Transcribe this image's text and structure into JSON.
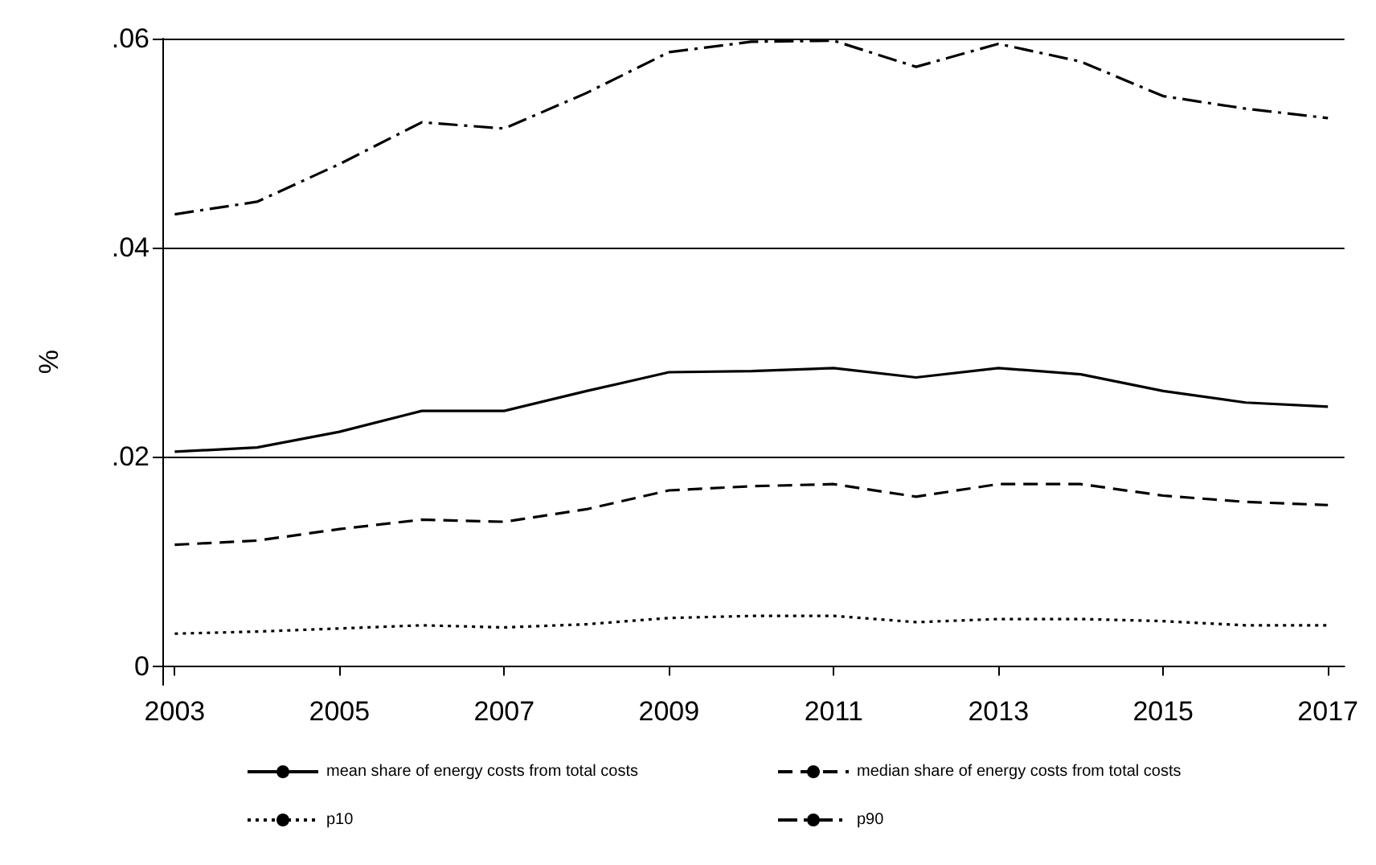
{
  "chart_data": {
    "type": "line",
    "ylabel": "%",
    "x": [
      2003,
      2004,
      2005,
      2006,
      2007,
      2008,
      2009,
      2010,
      2011,
      2012,
      2013,
      2014,
      2015,
      2016,
      2017
    ],
    "series": [
      {
        "name": "mean share of energy costs from total costs",
        "color": "#000000",
        "line_style": "solid",
        "values": [
          0.0205,
          0.0209,
          0.0224,
          0.0244,
          0.0244,
          0.0263,
          0.0281,
          0.0282,
          0.0285,
          0.0276,
          0.0285,
          0.0279,
          0.0263,
          0.0252,
          0.0248
        ]
      },
      {
        "name": "median share of energy costs from total costs",
        "color": "#000000",
        "line_style": "dashed",
        "values": [
          0.0116,
          0.012,
          0.0131,
          0.014,
          0.0138,
          0.015,
          0.0168,
          0.0172,
          0.0174,
          0.0162,
          0.0174,
          0.0174,
          0.0163,
          0.0157,
          0.0154
        ]
      },
      {
        "name": "p10",
        "color": "#000000",
        "line_style": "dotted",
        "values": [
          0.0031,
          0.0033,
          0.0036,
          0.0039,
          0.0037,
          0.004,
          0.0046,
          0.0048,
          0.0048,
          0.0042,
          0.0045,
          0.0045,
          0.0043,
          0.0039,
          0.0039
        ]
      },
      {
        "name": "p90",
        "color": "#000000",
        "line_style": "dashdot",
        "values": [
          0.0432,
          0.0444,
          0.048,
          0.052,
          0.0514,
          0.0548,
          0.0587,
          0.0597,
          0.0598,
          0.0573,
          0.0595,
          0.0578,
          0.0545,
          0.0533,
          0.0524
        ]
      }
    ],
    "xlim": [
      2002.85,
      2017.2
    ],
    "xticks": [
      2003,
      2005,
      2007,
      2009,
      2011,
      2013,
      2015,
      2017
    ],
    "ylim": [
      -0.0018,
      0.06
    ],
    "yticks": [
      {
        "value": 0,
        "label": "0"
      },
      {
        "value": 0.02,
        "label": ".02"
      },
      {
        "value": 0.04,
        "label": ".04"
      },
      {
        "value": 0.06,
        "label": ".06"
      }
    ],
    "grid": "y",
    "legend": "bottom",
    "marker": "none"
  }
}
